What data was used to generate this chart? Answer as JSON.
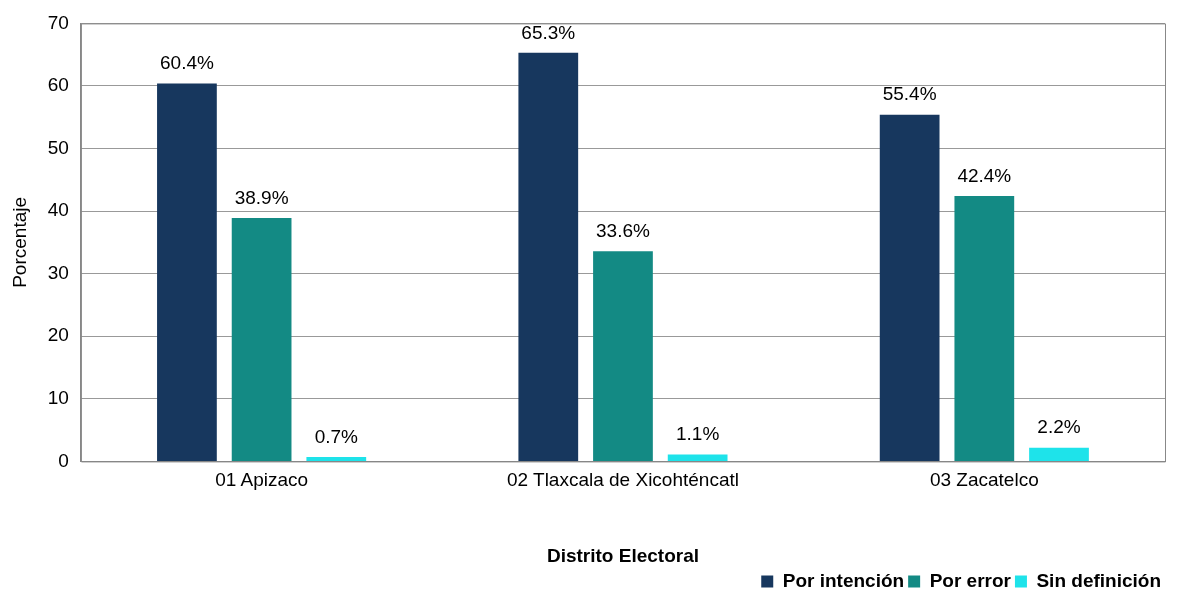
{
  "chart_data": {
    "type": "bar",
    "xlabel": "Distrito Electoral",
    "ylabel": "Porcentaje",
    "categories": [
      "01 Apizaco",
      "02 Tlaxcala de Xicohténcatl",
      "03 Zacatelco"
    ],
    "series": [
      {
        "name": "Por intención",
        "color": "#17375e",
        "values": [
          60.4,
          65.3,
          55.4
        ],
        "value_labels": [
          "60.4%",
          "65.3%",
          "55.4%"
        ]
      },
      {
        "name": "Por error",
        "color": "#138a84",
        "values": [
          38.9,
          33.6,
          42.4
        ],
        "value_labels": [
          "38.9%",
          "33.6%",
          "42.4%"
        ]
      },
      {
        "name": "Sin definición",
        "color": "#1ee3ea",
        "values": [
          0.7,
          1.1,
          2.2
        ],
        "value_labels": [
          "0.7%",
          "1.1%",
          "2.2%"
        ]
      }
    ],
    "ylim": [
      0,
      70
    ],
    "yticks": [
      0,
      10,
      20,
      30,
      40,
      50,
      60,
      70
    ],
    "grid": "y",
    "legend": "bottom right"
  }
}
